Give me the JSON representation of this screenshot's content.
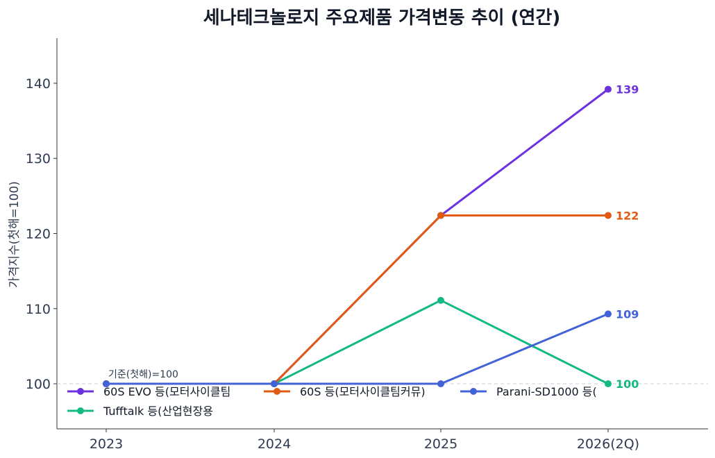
{
  "chart_data": {
    "type": "line",
    "title": "세나테크놀로지 주요제품 가격변동 추이 (연간)",
    "ylabel": "가격지수(첫해=100)",
    "xlabel": "",
    "categories": [
      "2023",
      "2024",
      "2025",
      "2026(2Q)"
    ],
    "ylim": [
      94,
      146
    ],
    "yticks": [
      100,
      110,
      120,
      130,
      140
    ],
    "baseline": 100,
    "baseline_annotation": "기준(첫해)=100",
    "grid": false,
    "legend_position": "bottom-left inside",
    "series": [
      {
        "name": "60S EVO 등(모터사이클팀",
        "color": "#6d32e0",
        "values": [
          100,
          100,
          122.4,
          139.2
        ],
        "end_label": "139"
      },
      {
        "name": "60S 등(모터사이클팀커뮤)",
        "color": "#e05a12",
        "values": [
          100,
          100,
          122.4,
          122.4
        ],
        "end_label": "122"
      },
      {
        "name": "Parani-SD1000 등(",
        "color": "#4263d8",
        "values": [
          100,
          100,
          100,
          109.3
        ],
        "end_label": "109"
      },
      {
        "name": "Tufftalk 등(산업현장용",
        "color": "#15b885",
        "values": [
          100,
          100,
          111.1,
          100
        ],
        "end_label": "100"
      }
    ]
  }
}
